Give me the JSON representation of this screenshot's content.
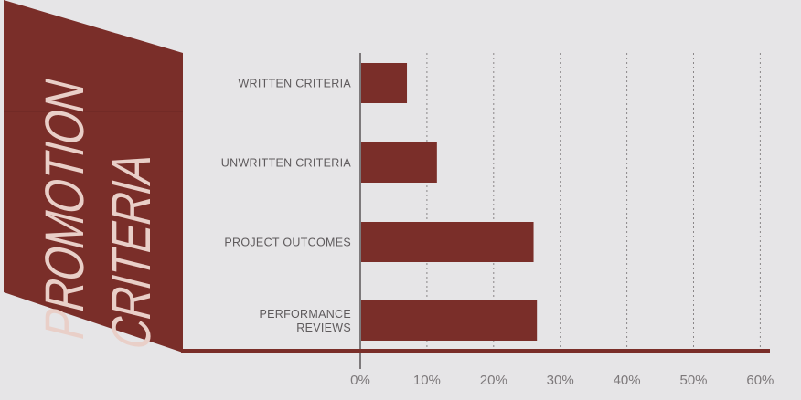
{
  "colors": {
    "background": "#e6e5e7",
    "bar": "#7a2e29",
    "panel": "#7a2e29",
    "title_text": "#e9cfc8",
    "label_text": "#5e5a5c",
    "tick_text": "#7d797b",
    "gridline": "#8a8688"
  },
  "chart_data": {
    "type": "bar",
    "orientation": "horizontal",
    "title_lines": [
      "PROMOTION",
      "CRITERIA"
    ],
    "categories": [
      [
        "WRITTEN CRITERIA"
      ],
      [
        "UNWRITTEN CRITERIA"
      ],
      [
        "PROJECT OUTCOMES"
      ],
      [
        "PERFORMANCE",
        "REVIEWS"
      ]
    ],
    "values": [
      7,
      11.5,
      26,
      26.5
    ],
    "xlim": [
      0,
      60
    ],
    "xticks": [
      "0%",
      "10%",
      "20%",
      "30%",
      "40%",
      "50%",
      "60%"
    ],
    "xtick_values": [
      0,
      10,
      20,
      30,
      40,
      50,
      60
    ],
    "grid": "vertical-dotted"
  }
}
